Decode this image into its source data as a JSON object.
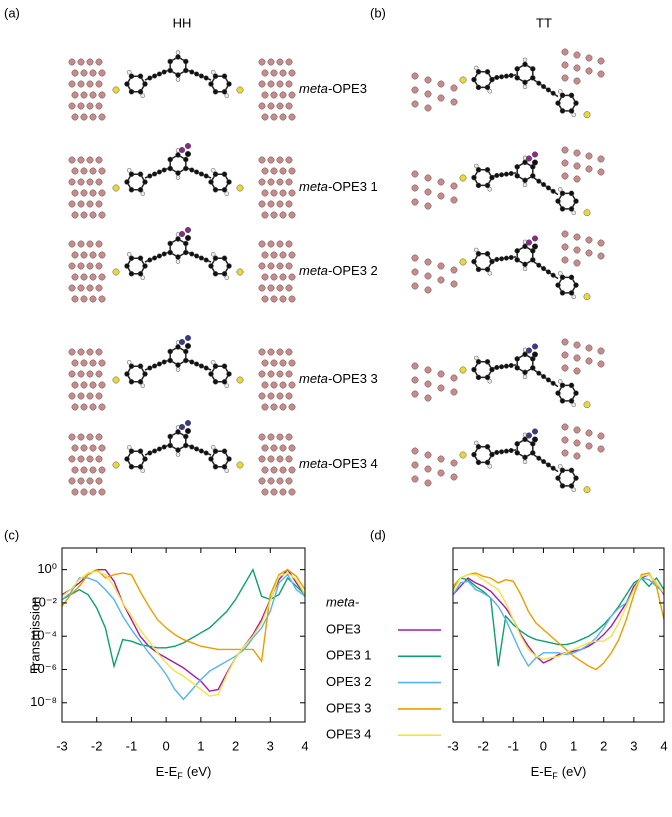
{
  "panel_a": {
    "label": "(a)",
    "title": "HH"
  },
  "panel_b": {
    "label": "(b)",
    "title": "TT"
  },
  "structures": [
    {
      "prefix": "meta-",
      "name": "OPE3"
    },
    {
      "prefix": "meta-",
      "name": "OPE3 1"
    },
    {
      "prefix": "meta-",
      "name": "OPE3 2"
    },
    {
      "prefix": "meta-",
      "name": "OPE3 3"
    },
    {
      "prefix": "meta-",
      "name": "OPE3 4"
    }
  ],
  "chart_data": [
    {
      "type": "line",
      "panel_label": "(c)",
      "ylabel": "Transmission",
      "xlabel": [
        "E-E",
        "F",
        "(eV)"
      ],
      "legend_title": "meta-",
      "log_y": true,
      "xlim": [
        -3,
        4
      ],
      "xticks": [
        -3,
        -2,
        -1,
        0,
        1,
        2,
        3,
        4
      ],
      "ylim": [
        7e-10,
        20
      ],
      "yticks": [
        {
          "value": 1,
          "label": "10⁰"
        },
        {
          "value": 0.01,
          "label": "10⁻²"
        },
        {
          "value": 0.0001,
          "label": "10⁻⁴"
        },
        {
          "value": 1e-06,
          "label": "10⁻⁶"
        },
        {
          "value": 1e-08,
          "label": "10⁻⁸"
        }
      ],
      "x": [
        -3,
        -2.75,
        -2.5,
        -2.25,
        -2,
        -1.75,
        -1.5,
        -1.25,
        -1,
        -0.75,
        -0.5,
        -0.25,
        0,
        0.25,
        0.5,
        0.75,
        1,
        1.25,
        1.5,
        1.75,
        2,
        2.25,
        2.5,
        2.75,
        3,
        3.25,
        3.5,
        3.75,
        4
      ],
      "series": [
        {
          "name": "OPE3",
          "color": "#a31ca3",
          "values": [
            0.0316,
            0.063,
            0.16,
            0.5,
            1,
            1,
            0.2,
            0.01,
            0.001,
            0.0001,
            2.5e-05,
            1e-05,
            5e-06,
            2.5e-06,
            1.26e-06,
            5e-07,
            2e-07,
            5e-08,
            6.3e-08,
            6.3e-07,
            5e-06,
            2.5e-05,
            0.000126,
            0.001,
            0.016,
            0.25,
            1,
            0.16,
            0.0316
          ]
        },
        {
          "name": "OPE3 1",
          "color": "#0f9e73",
          "values": [
            0.016,
            0.0316,
            0.063,
            0.0316,
            0.005,
            0.000316,
            1.6e-06,
            6.3e-05,
            5e-05,
            3.16e-05,
            2.5e-05,
            2e-05,
            2e-05,
            2.5e-05,
            4e-05,
            7.9e-05,
            0.00016,
            0.000316,
            0.001,
            0.00316,
            0.016,
            0.126,
            1,
            0.025,
            0.016,
            0.0316,
            0.316,
            0.1,
            0.0316
          ]
        },
        {
          "name": "OPE3 2",
          "color": "#56b4e9",
          "values": [
            0.016,
            0.04,
            0.316,
            0.316,
            0.2,
            0.063,
            0.016,
            0.0016,
            0.00025,
            5e-05,
            1e-05,
            2.5e-06,
            5e-07,
            6.3e-08,
            1.6e-08,
            6.3e-08,
            2.5e-07,
            7.9e-07,
            1.6e-06,
            3.16e-06,
            6.3e-06,
            1.6e-05,
            7.9e-05,
            0.000316,
            0.00316,
            0.16,
            0.5,
            0.063,
            0.025
          ]
        },
        {
          "name": "OPE3 3",
          "color": "#e69f00",
          "values": [
            0.0063,
            0.0316,
            0.1,
            0.5,
            1,
            0.316,
            0.5,
            0.63,
            0.5,
            0.05,
            0.0063,
            0.001,
            0.000316,
            0.000126,
            6.3e-05,
            4e-05,
            2.5e-05,
            2e-05,
            1.6e-05,
            1.6e-05,
            1.6e-05,
            1.6e-05,
            1.6e-05,
            3.16e-06,
            0.0316,
            0.5,
            1,
            0.4,
            0.063
          ]
        },
        {
          "name": "OPE3 4",
          "color": "#f0e442",
          "values": [
            0.025,
            0.063,
            0.25,
            0.63,
            0.79,
            0.5,
            0.1,
            0.01,
            0.0016,
            0.00025,
            5e-05,
            1e-05,
            2.5e-06,
            7.9e-07,
            4e-07,
            1.6e-07,
            6.3e-08,
            2.5e-08,
            3.16e-08,
            5e-07,
            5e-06,
            2.5e-05,
            0.0001,
            0.00063,
            0.0126,
            0.4,
            0.63,
            0.25,
            0.0316
          ]
        }
      ]
    },
    {
      "type": "line",
      "panel_label": "(d)",
      "xlabel": [
        "E-E",
        "F",
        "(eV)"
      ],
      "log_y": true,
      "xlim": [
        -3,
        4
      ],
      "xticks": [
        -3,
        -2,
        -1,
        0,
        1,
        2,
        3,
        4
      ],
      "ylim": [
        7e-10,
        20
      ],
      "yticks": [
        1,
        0.01,
        0.0001,
        1e-06,
        1e-08
      ],
      "x": [
        -3,
        -2.75,
        -2.5,
        -2.25,
        -2,
        -1.75,
        -1.5,
        -1.25,
        -1,
        -0.75,
        -0.5,
        -0.25,
        0,
        0.25,
        0.5,
        0.75,
        1,
        1.25,
        1.5,
        1.75,
        2,
        2.25,
        2.5,
        2.75,
        3,
        3.25,
        3.5,
        3.75,
        4
      ],
      "series": [
        {
          "color": "#a31ca3",
          "values": [
            0.0316,
            0.1,
            0.316,
            0.16,
            0.1,
            0.05,
            0.016,
            0.005,
            0.001,
            0.000126,
            2.5e-05,
            6.3e-06,
            2.5e-06,
            4e-06,
            7.9e-06,
            1e-05,
            1.26e-05,
            1.6e-05,
            2.5e-05,
            5e-05,
            0.000126,
            0.0004,
            0.002,
            0.01,
            0.1,
            0.316,
            0.5,
            0.16,
            0.0316
          ]
        },
        {
          "color": "#0f9e73",
          "values": [
            0.063,
            0.316,
            0.25,
            0.1,
            0.05,
            0.02,
            1.6e-06,
            0.0016,
            0.0005,
            0.0002,
            0.0001,
            6.3e-05,
            5e-05,
            4e-05,
            3.16e-05,
            3.16e-05,
            4e-05,
            6.3e-05,
            0.0001,
            0.0002,
            0.0005,
            0.0016,
            0.0063,
            0.0316,
            0.16,
            0.316,
            0.1,
            0.316,
            0.063
          ]
        },
        {
          "color": "#56b4e9",
          "values": [
            0.0316,
            0.16,
            0.2,
            0.063,
            0.04,
            0.02,
            0.0063,
            0.001,
            0.0001,
            1e-05,
            1.6e-06,
            5e-06,
            1e-05,
            1e-05,
            1e-05,
            7.9e-06,
            1e-05,
            1.6e-05,
            3.16e-05,
            7.9e-05,
            0.000316,
            0.0016,
            0.005,
            0.01,
            0.063,
            0.316,
            0.25,
            0.1,
            0.04
          ]
        },
        {
          "color": "#e69f00",
          "values": [
            0.1,
            0.316,
            0.5,
            0.63,
            0.4,
            0.316,
            0.16,
            0.25,
            0.2,
            0.0316,
            0.00316,
            0.00063,
            0.00025,
            0.0001,
            4e-05,
            1.6e-05,
            6.3e-06,
            3.16e-06,
            1.6e-06,
            1e-06,
            2.5e-06,
            1e-05,
            6.3e-05,
            0.001,
            0.0316,
            0.5,
            0.63,
            0.1,
            0.001
          ]
        },
        {
          "color": "#f0e442",
          "values": [
            0.05,
            0.316,
            0.5,
            0.5,
            0.25,
            0.126,
            0.063,
            0.01,
            0.001,
            0.0001,
            1.6e-05,
            6.3e-06,
            4e-06,
            5e-06,
            6.3e-06,
            1e-05,
            1.6e-05,
            2.5e-05,
            4e-05,
            5e-05,
            5e-05,
            0.0001,
            0.00063,
            0.0063,
            0.063,
            0.4,
            0.5,
            0.16,
            0.04
          ]
        }
      ]
    }
  ]
}
